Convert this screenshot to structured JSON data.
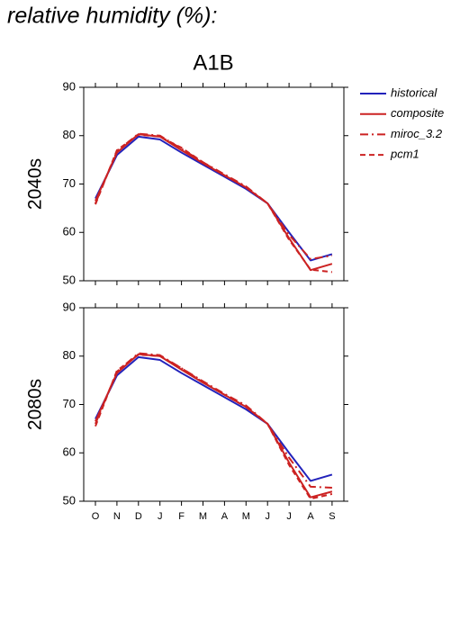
{
  "heading": "relative humidity (%):",
  "chart_data": [
    {
      "type": "line",
      "title": "A1B",
      "ylabel": "2040s",
      "categories": [
        "O",
        "N",
        "D",
        "J",
        "F",
        "M",
        "A",
        "M",
        "J",
        "J",
        "A",
        "S"
      ],
      "ylim": [
        50,
        90
      ],
      "yticks": [
        50,
        60,
        70,
        80,
        90
      ],
      "series": [
        {
          "name": "historical",
          "color": "#2222bb",
          "dash": "none",
          "values": [
            67,
            76,
            79.8,
            79.2,
            76.5,
            74,
            71.5,
            69,
            66,
            60,
            54.2,
            55.5
          ]
        },
        {
          "name": "composite",
          "color": "#cc2222",
          "dash": "none",
          "values": [
            66.5,
            76.5,
            80.3,
            79.8,
            77,
            74.3,
            71.8,
            69.3,
            66,
            58.8,
            52.2,
            53.5
          ]
        },
        {
          "name": "miroc_3.2",
          "color": "#cc2222",
          "dash": "9 4 2 4",
          "values": [
            66,
            76.8,
            80.4,
            80,
            77.3,
            74.5,
            72,
            69.5,
            66,
            59.5,
            54.5,
            55.2
          ]
        },
        {
          "name": "pcm1",
          "color": "#cc2222",
          "dash": "6 4",
          "values": [
            65.8,
            77,
            80.2,
            79.8,
            77.5,
            74.5,
            71.8,
            69.3,
            66,
            58.5,
            52.3,
            51.8
          ]
        }
      ]
    },
    {
      "type": "line",
      "ylabel": "2080s",
      "categories": [
        "O",
        "N",
        "D",
        "J",
        "F",
        "M",
        "A",
        "M",
        "J",
        "J",
        "A",
        "S"
      ],
      "ylim": [
        50,
        90
      ],
      "yticks": [
        50,
        60,
        70,
        80,
        90
      ],
      "series": [
        {
          "name": "historical",
          "color": "#2222bb",
          "dash": "none",
          "values": [
            67,
            76,
            79.8,
            79.2,
            76.5,
            74,
            71.5,
            69,
            66,
            60,
            54.2,
            55.5
          ]
        },
        {
          "name": "composite",
          "color": "#cc2222",
          "dash": "none",
          "values": [
            66.5,
            76.5,
            80.4,
            80,
            77.2,
            74.5,
            72,
            69.5,
            66,
            58,
            50.8,
            52
          ]
        },
        {
          "name": "miroc_3.2",
          "color": "#cc2222",
          "dash": "9 4 2 4",
          "values": [
            66,
            76.8,
            80.6,
            80.2,
            77.5,
            74.8,
            72.2,
            69.8,
            66,
            59,
            53,
            52.8
          ]
        },
        {
          "name": "pcm1",
          "color": "#cc2222",
          "dash": "6 4",
          "values": [
            65.5,
            77,
            80.3,
            80,
            77.5,
            74.6,
            72,
            69.5,
            66,
            57.5,
            50.5,
            51.5
          ]
        }
      ]
    }
  ]
}
